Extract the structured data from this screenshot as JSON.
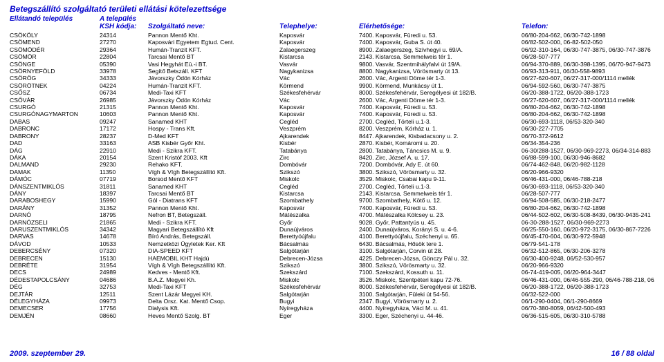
{
  "title": "Betegszállító szolgáltató területi ellátási kötelezettsége",
  "header": {
    "line1": {
      "c1": "Ellátandó település",
      "c2": "A település"
    },
    "line2": {
      "c1": "",
      "c2": "KSH kódja:",
      "c3": "Szolgáltató neve:",
      "c4": "Telephelye:",
      "c5": "Elérhetősége:",
      "c6": "Telefon:"
    }
  },
  "footer": {
    "left": "2009. szeptember 29.",
    "right": "16 / 88 oldal"
  },
  "rows": [
    {
      "t": "CSÖKÖLY",
      "k": "24314",
      "s": "Pannon Mentő Kht.",
      "h": "Kaposvár",
      "e": "7400. Kaposvár, Füredi u. 53.",
      "f": "06/80-204-662, 06/30-742-1898"
    },
    {
      "t": "CSÖMEND",
      "k": "27270",
      "s": "Kaposvári Egyetem Egtud. Cent.",
      "h": "Kaposvár",
      "e": "7400. Kaposvár, Guba S. út 40.",
      "f": "06/82-502-000, 06-82-502-050"
    },
    {
      "t": "CSÖMÖDÉR",
      "k": "29364",
      "s": "Humán-Tranzit KFT.",
      "h": "Zalaegerszeg",
      "e": "8900. Zalaegerszeg, Szívhegyi u. 69/A.",
      "f": "06/92-310-164, 06/30-747-3875, 06/30-747-3876"
    },
    {
      "t": "CSÖMÖR",
      "k": "22804",
      "s": "Tarcsai Mentő BT",
      "h": "Kistarcsa",
      "e": "2143. Kistarcsa, Semmelweis tér 1.",
      "f": "06/28-507-777"
    },
    {
      "t": "CSÖNGE",
      "k": "05390",
      "s": "Vasi Hegyhát Eü.-i BT.",
      "h": "Vasvár",
      "e": "9800. Vasvár, Szentmihályfalvi út 19/A.",
      "f": "06/94-370-889, 06/30-398-1395, 06/70-947-9473"
    },
    {
      "t": "CSÖRNYEFÖLD",
      "k": "33978",
      "s": "Segítő Betszáll. KFT",
      "h": "Nagykanizsa",
      "e": "8800. Nagykanizsa, Vörösmarty út 13.",
      "f": "06/93-313-911, 06/30-558-9893"
    },
    {
      "t": "CSÖRÖG",
      "k": "34333",
      "s": "Jávorszky Ödön Kórház",
      "h": "Vác",
      "e": "2600. Vác, Argenti Döme tér 1-3.",
      "f": "06/27-620-607, 06/27-317-000/1114 mellék"
    },
    {
      "t": "CSÖRÖTNEK",
      "k": "04224",
      "s": "Humán-Tranzit KFT.",
      "h": "Körmend",
      "e": "9900. Körmend, Munkácsy út 1.",
      "f": "06/94-592-560, 06/30-747-3875"
    },
    {
      "t": "CSŐSZ",
      "k": "06734",
      "s": "Medi-Taxi KFT",
      "h": "Székesfehérvár",
      "e": "8000. Székesfehérvár, Seregélyesi út 182/B.",
      "f": "06/20-388-1722, 06/20-388-1723"
    },
    {
      "t": "CSŐVÁR",
      "k": "26985",
      "s": "Jávorszky Ödön Kórház",
      "h": "Vác",
      "e": "2600. Vác, Argenti Döme tér 1-3.",
      "f": "06/27-620-607, 06/27-317-000/1114 mellék"
    },
    {
      "t": "CSURGÓ",
      "k": "21315",
      "s": "Pannon Mentő Kht.",
      "h": "Kaposvár",
      "e": "7400. Kaposvár, Füredi u. 53.",
      "f": "06/80-204-662, 06/30-742-1898"
    },
    {
      "t": "CSURGÓNAGYMARTON",
      "k": "10603",
      "s": "Pannon Mentő Kht.",
      "h": "Kaposvár",
      "e": "7400. Kaposvár, Füredi u. 53.",
      "f": "06/80-204-662, 06/30-742-1898"
    },
    {
      "t": "DABAS",
      "k": "09247",
      "s": "Sanamed KHT",
      "h": "Cegléd",
      "e": "2700. Cegléd, Törteli u.1-3.",
      "f": "06/30-693-1118, 06/53-320-340"
    },
    {
      "t": "DABRONC",
      "k": "17172",
      "s": "Hospy - Trans Kft.",
      "h": "Veszprém",
      "e": "8200. Veszprém, Kórház u. 1.",
      "f": "06/30-227-7705"
    },
    {
      "t": "DABRONY",
      "k": "28237",
      "s": "D-Med KFT",
      "h": "Ajkarendek",
      "e": "8447. Ajkarendek, Kisbadacsony u. 2.",
      "f": "06/70-372-9612"
    },
    {
      "t": "DAD",
      "k": "33163",
      "s": "ASB Kisbér Győr Kht.",
      "h": "Kisbér",
      "e": "2870. Kisbér, Komáromi u. 20.",
      "f": "06/34-354-236"
    },
    {
      "t": "DÁG",
      "k": "22910",
      "s": "Medi - Szikra KFT.",
      "h": "Tatabánya",
      "e": "2800. Tatabánya, Táncsics M. u. 9.",
      "f": "06-30/288-1527, 06/30-969-2273, 06/34-314-883"
    },
    {
      "t": "DÁKA",
      "k": "20154",
      "s": "Szent Kristóf 2003. Kft",
      "h": "Zirc",
      "e": "8420. Zirc, József A. u. 17.",
      "f": "06/88-599-100, 06/30-946-8682"
    },
    {
      "t": "DALMAND",
      "k": "29230",
      "s": "Rehako KFT.",
      "h": "Dombóvár",
      "e": "7200. Dombóvár, Ady E. út 60.",
      "f": "06/74-462-848, 06/20-982-1128"
    },
    {
      "t": "DAMAK",
      "k": "11350",
      "s": "Vígh & Vígh Betegszállító Kft.",
      "h": "Szikszó",
      "e": "3800. Szikszó, Vörösmarty u. 32.",
      "f": "06/20-966-9320"
    },
    {
      "t": "DÁMÓC",
      "k": "07719",
      "s": "Borsod Mentő KFT",
      "h": "Miskolc",
      "e": "3529. Miskolc, Csabai kapu 9-11.",
      "f": "06/46-431-000, 06/46-788-218"
    },
    {
      "t": "DÁNSZENTMIKLÓS",
      "k": "31811",
      "s": "Sanamed KHT",
      "h": "Cegléd",
      "e": "2700. Cegléd, Törteli u.1-3.",
      "f": "06/30-693-1118, 06/53-320-340"
    },
    {
      "t": "DÁNY",
      "k": "18397",
      "s": "Tarcsai Mentő BT",
      "h": "Kistarcsa",
      "e": "2143. Kistarcsa, Semmelweis tér 1.",
      "f": "06/28-507-777"
    },
    {
      "t": "DARABOSHEGY",
      "k": "15990",
      "s": "Gól - Diatrans KFT",
      "h": "Szombathely",
      "e": "9700. Szombathely, Kötő u. 12.",
      "f": "06/94-508-585, 06/30-218-2477"
    },
    {
      "t": "DARÁNY",
      "k": "31352",
      "s": "Pannon Mentő Kht.",
      "h": "Kaposvár",
      "e": "7400. Kaposvár, Füredi u. 53.",
      "f": "06/80-204-662, 06/30-742-1898"
    },
    {
      "t": "DARNÓ",
      "k": "18795",
      "s": "Nefron BT, Betegszáll.",
      "h": "Mátészalka",
      "e": "4700. Mátészalka Kölcsey u. 23.",
      "f": "06/44-502-602, 06/30-508-8439, 06/30-9435-241"
    },
    {
      "t": "DARNÓZSELI",
      "k": "21865",
      "s": "Medi - Szikra KFT.",
      "h": "Győr",
      "e": "9028. Győr, Pattantyús u. 45.",
      "f": "06-30-288-1527, 06/30-969-2273"
    },
    {
      "t": "DARUSZENTMIKLÓS",
      "k": "34342",
      "s": "Magyari Betegszállító Kft",
      "h": "Dunaújváros",
      "e": "2400. Dunaújváros, Korányi S. u. 4-6.",
      "f": "06/25-550-160, 06/20-972-3175, 06/30-867-7226"
    },
    {
      "t": "DARVAS",
      "k": "14678",
      "s": "Bíró András, Betegszáll.",
      "h": "Berettyóújfalu",
      "e": "4100. Berettyóújfalu, Széchenyi u. 65.",
      "f": "06/45-470-604, 06/30-972-5948"
    },
    {
      "t": "DÁVOD",
      "k": "10533",
      "s": "Nemzetközi Ügyletek Ker. Kft",
      "h": "Bácsalmás",
      "e": "6430. Bácsalmás, Hősök tere 1.",
      "f": "06/79-541-178"
    },
    {
      "t": "DEBERCSÉNY",
      "k": "07320",
      "s": "DIA-SPEED KFT",
      "h": "Salgótarján",
      "e": "3100. Salgótarján, Corvin út 28.",
      "f": "06/32-512-865, 06/30-206-3278"
    },
    {
      "t": "DEBRECEN",
      "k": "15130",
      "s": "HAEMOBIL KHT Hajdú",
      "h": "Debrecen-Józsa",
      "e": "4225. Debrecen-Józsa, Gönczy Pál u. 32.",
      "f": "06/30-400-9248, 06/52-530-957"
    },
    {
      "t": "DEBRÉTE",
      "k": "31954",
      "s": "Vígh & Vígh Betegszállító Kft.",
      "h": "Szikszó",
      "e": "3800. Szikszó, Vörösmarty u. 32.",
      "f": "06/20-966-9320"
    },
    {
      "t": "DECS",
      "k": "24989",
      "s": "Kedves - Mentő Kft.",
      "h": "Szekszárd",
      "e": "7100. Szekszárd, Kossuth u. 11.",
      "f": "06-74-419-005, 06/20-964-3447"
    },
    {
      "t": "DÉDESTAPOLCSÁNY",
      "k": "04686",
      "s": "B.A.Z. Megyei Kh.",
      "h": "Miskolc",
      "e": "3526. Miskolc, Szentpéteri kapu 72-76.",
      "f": "06/46-431-000, 06/46-555-290, 06/46-788-218, 06/30-606-"
    },
    {
      "t": "DÉG",
      "k": "32753",
      "s": "Medi-Taxi KFT",
      "h": "Székesfehérvár",
      "e": "8000. Székesfehérvár, Seregélyesi út 182/B.",
      "f": "06/20-388-1722, 06/20-388-1723"
    },
    {
      "t": "DEJTÁR",
      "k": "12511",
      "s": "Szent Lázár Megyei KH.",
      "h": "Salgótarján",
      "e": "3100. Salgótarján, Füleki út 54-56.",
      "f": "06/32-522-000"
    },
    {
      "t": "DÉLEGYHÁZA",
      "k": "09973",
      "s": "Delta Orsz. Kat. Mentő Csop.",
      "h": "Bugyi",
      "e": "2347. Bugyi, Vörösmarty u. 2.",
      "f": "06/1-290-0404, 06/1-290-8669"
    },
    {
      "t": "DEMECSER",
      "k": "17756",
      "s": "Dialysis Kft.",
      "h": "Nyíregyháza",
      "e": "4400. Nyíregyháza, Váci M. u. 41.",
      "f": "06/70-380-8059, 06/42-500-493"
    },
    {
      "t": "DEMJÉN",
      "k": "08660",
      "s": "Heves Mentő Szolg. BT",
      "h": "Eger",
      "e": "3300. Eger, Széchenyi u. 44-46.",
      "f": "06/36-515-605, 06/30-310-5788"
    }
  ]
}
